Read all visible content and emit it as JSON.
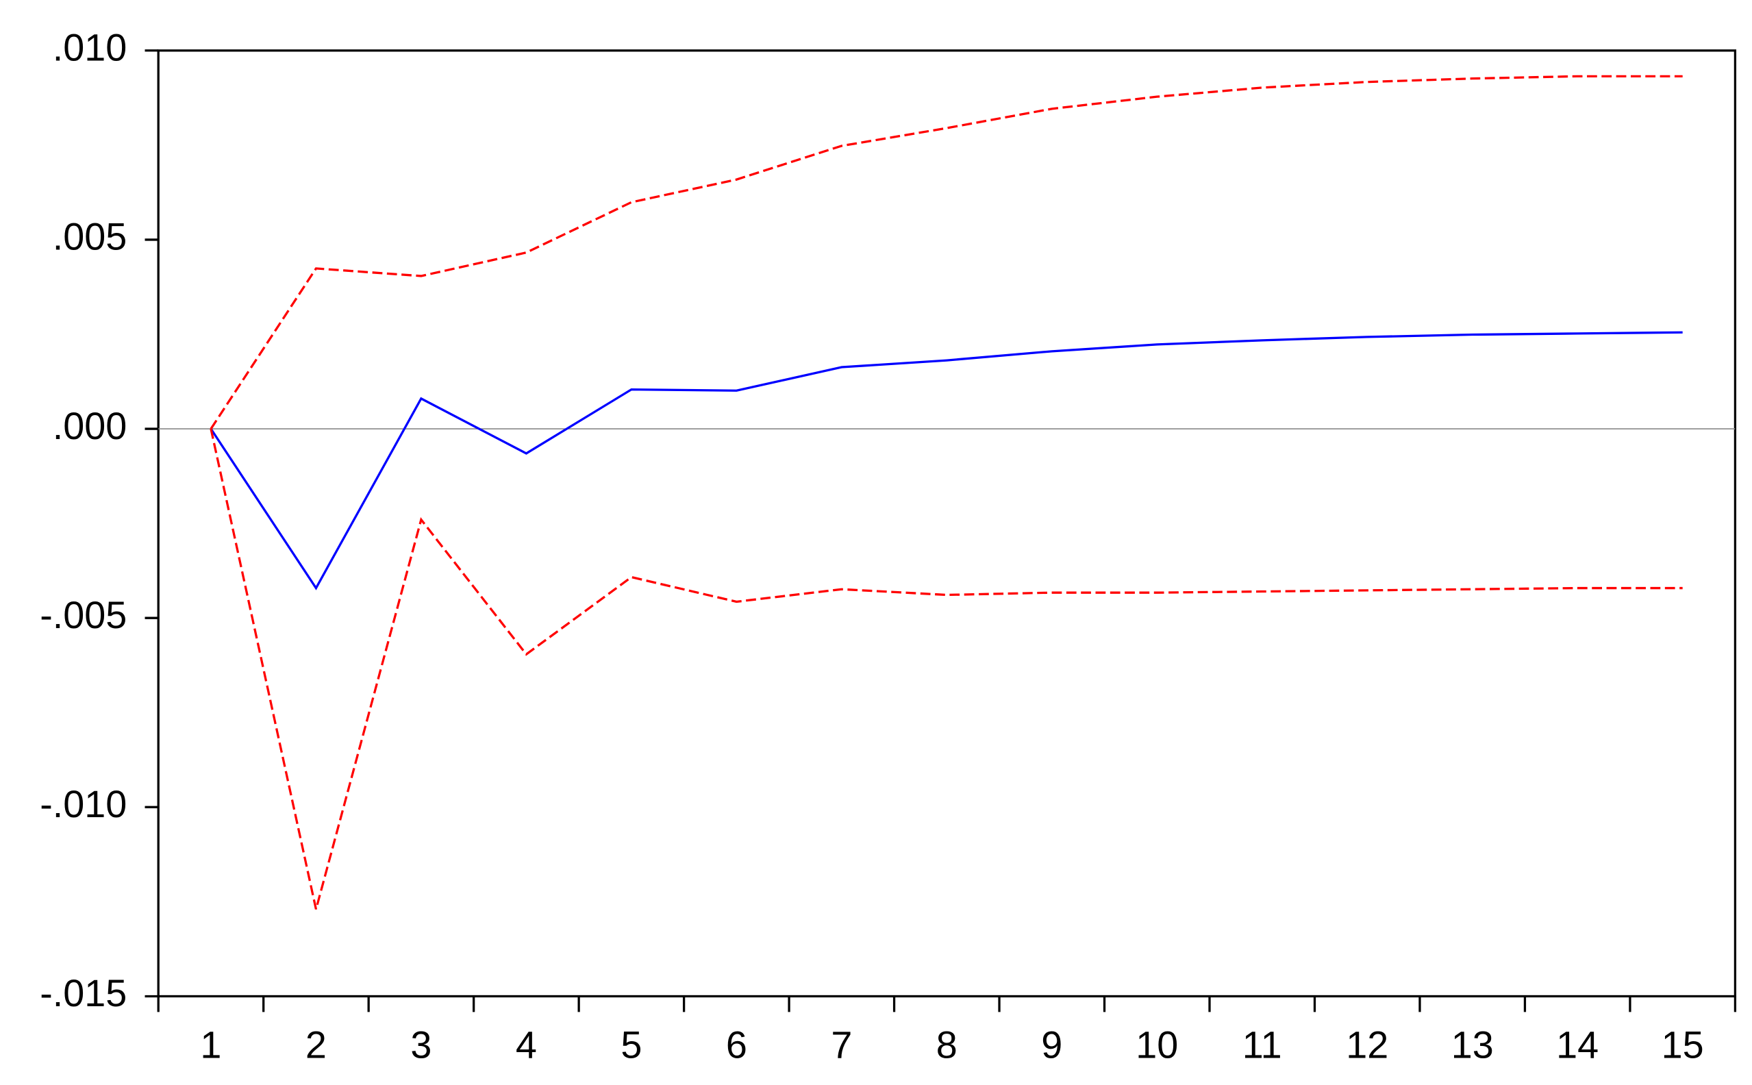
{
  "chart_data": {
    "type": "line",
    "categories": [
      "1",
      "2",
      "3",
      "4",
      "5",
      "6",
      "7",
      "8",
      "9",
      "10",
      "11",
      "12",
      "13",
      "14",
      "15"
    ],
    "series": [
      {
        "color": "#0000ff",
        "dashed": false,
        "values": [
          0,
          -0.00421,
          0.0008,
          -0.00065,
          0.00104,
          0.00101,
          0.00163,
          0.00181,
          0.00205,
          0.00223,
          0.00234,
          0.00243,
          0.00249,
          0.00252,
          0.00255
        ]
      },
      {
        "color": "#ff0000",
        "dashed": true,
        "values": [
          0,
          0.00424,
          0.00404,
          0.00466,
          0.00599,
          0.00659,
          0.00748,
          0.00795,
          0.00846,
          0.00878,
          0.00902,
          0.00917,
          0.00926,
          0.00932,
          0.00932
        ]
      },
      {
        "color": "#ff0000",
        "dashed": true,
        "values": [
          0,
          -0.0127,
          -0.0024,
          -0.00596,
          -0.00392,
          -0.00457,
          -0.00424,
          -0.00439,
          -0.00433,
          -0.00433,
          -0.0043,
          -0.00427,
          -0.00424,
          -0.00421,
          -0.00421
        ]
      }
    ],
    "ylim": [
      -0.015,
      0.01
    ],
    "yticks": [
      {
        "value": -0.015,
        "label": "-.015"
      },
      {
        "value": -0.01,
        "label": "-.010"
      },
      {
        "value": -0.005,
        "label": "-.005"
      },
      {
        "value": 0,
        "label": ".000"
      },
      {
        "value": 0.005,
        "label": ".005"
      },
      {
        "value": 0.01,
        "label": ".010"
      }
    ],
    "zero_line": true
  }
}
